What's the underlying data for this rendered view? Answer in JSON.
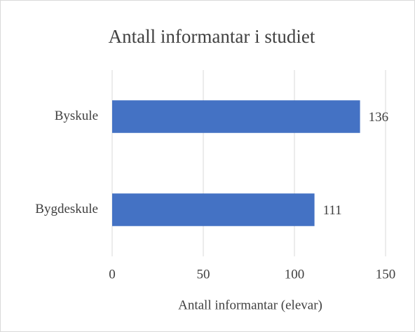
{
  "chart_data": {
    "type": "hbar",
    "title": "Antall informantar i studiet",
    "categories": [
      "Byskule",
      "Bygdeskule"
    ],
    "values": [
      136,
      111
    ],
    "color": "#4472c4",
    "xlabel": "Antall informantar (elevar)",
    "xlim": [
      0,
      150
    ],
    "xticks": [
      0,
      50,
      100,
      150
    ],
    "grid": true,
    "data_labels": true
  }
}
